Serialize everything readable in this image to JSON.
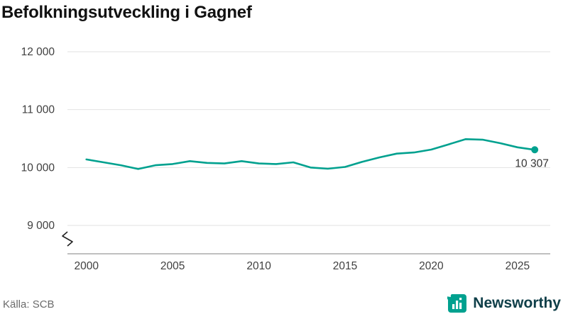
{
  "title": "Befolkningsutveckling i Gagnef",
  "source": "Källa: SCB",
  "brand": {
    "name": "Newsworthy",
    "icon_color": "#00a18f",
    "text_color": "#0e3e48"
  },
  "chart_data": {
    "type": "line",
    "title": "Befolkningsutveckling i Gagnef",
    "xlabel": "",
    "ylabel": "",
    "xlim": [
      1998.9,
      2026.9
    ],
    "ylim": [
      9000,
      12000
    ],
    "grid": "horizontal",
    "legend": "none",
    "axis_break": true,
    "end_label": "10 307",
    "yticks": [
      {
        "value": 9000,
        "label": "9 000"
      },
      {
        "value": 10000,
        "label": "10 000"
      },
      {
        "value": 11000,
        "label": "11 000"
      },
      {
        "value": 12000,
        "label": "12 000"
      }
    ],
    "xticks": [
      {
        "value": 2000,
        "label": "2000"
      },
      {
        "value": 2005,
        "label": "2005"
      },
      {
        "value": 2010,
        "label": "2010"
      },
      {
        "value": 2015,
        "label": "2015"
      },
      {
        "value": 2020,
        "label": "2020"
      },
      {
        "value": 2025,
        "label": "2025"
      }
    ],
    "series": [
      {
        "name": "Befolkning i Gagnef",
        "color": "#00a18f",
        "x": [
          2000,
          2001,
          2002,
          2003,
          2004,
          2005,
          2006,
          2007,
          2008,
          2009,
          2010,
          2011,
          2012,
          2013,
          2014,
          2015,
          2016,
          2017,
          2018,
          2019,
          2020,
          2021,
          2022,
          2023,
          2024,
          2025,
          2026
        ],
        "values": [
          10140,
          10090,
          10040,
          9975,
          10040,
          10060,
          10110,
          10080,
          10070,
          10110,
          10070,
          10060,
          10090,
          10000,
          9980,
          10010,
          10100,
          10175,
          10240,
          10260,
          10310,
          10400,
          10490,
          10480,
          10420,
          10350,
          10307
        ]
      }
    ]
  }
}
